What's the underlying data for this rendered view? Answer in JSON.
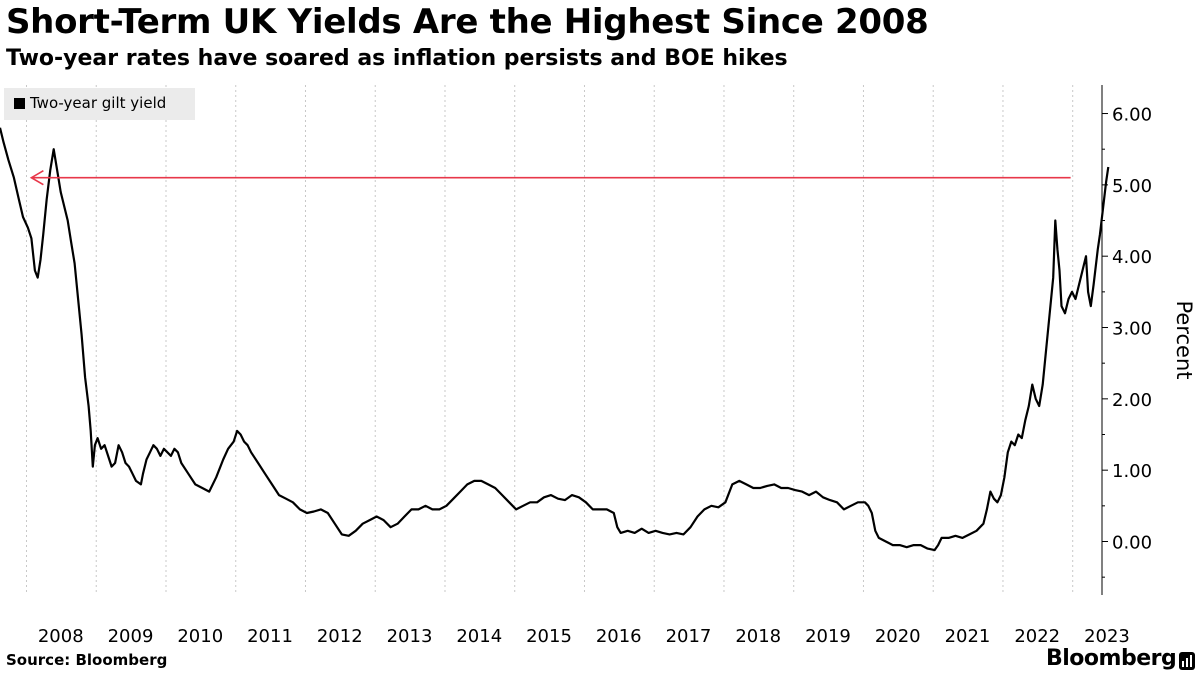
{
  "header": {
    "title": "Short-Term UK Yields Are the Highest Since 2008",
    "subtitle": "Two-year rates have soared as inflation persists and BOE hikes"
  },
  "footer": {
    "source": "Source: Bloomberg",
    "brand": "Bloomberg",
    "brand_icon": "bloomberg-terminal-icon"
  },
  "chart_data": {
    "type": "line",
    "title": "Short-Term UK Yields Are the Highest Since 2008",
    "subtitle": "Two-year rates have soared as inflation persists and BOE hikes",
    "ylabel": "Percent",
    "xlabel": "",
    "xlim": [
      2007.6,
      2023.4
    ],
    "ylim": [
      -0.75,
      6.4
    ],
    "y_axis_side": "right",
    "yticks": [
      0,
      1,
      2,
      3,
      4,
      5,
      6
    ],
    "ytick_labels": [
      "0.00",
      "1.00",
      "2.00",
      "3.00",
      "4.00",
      "5.00",
      "6.00"
    ],
    "xticks": [
      "2008",
      "2009",
      "2010",
      "2011",
      "2012",
      "2013",
      "2014",
      "2015",
      "2016",
      "2017",
      "2018",
      "2019",
      "2020",
      "2021",
      "2022",
      "2023"
    ],
    "grid": {
      "vertical": true,
      "horizontal": false
    },
    "legend": {
      "placement": "top-left",
      "entries": [
        "Two-year gilt yield"
      ]
    },
    "colors": {
      "series": "#000000",
      "annotation_arrow": "#e8374a",
      "legend_bg": "#ebebeb",
      "grid": "#c8c8c8"
    },
    "annotations": [
      {
        "type": "arrow",
        "from": [
          2022.95,
          5.1
        ],
        "to": [
          2008.05,
          5.1
        ]
      }
    ],
    "series": [
      {
        "name": "Two-year gilt yield",
        "points": [
          [
            2007.6,
            5.8
          ],
          [
            2007.65,
            5.6
          ],
          [
            2007.72,
            5.35
          ],
          [
            2007.8,
            5.1
          ],
          [
            2007.87,
            4.8
          ],
          [
            2007.93,
            4.55
          ],
          [
            2008.0,
            4.4
          ],
          [
            2008.05,
            4.25
          ],
          [
            2008.1,
            3.8
          ],
          [
            2008.14,
            3.7
          ],
          [
            2008.18,
            3.95
          ],
          [
            2008.22,
            4.3
          ],
          [
            2008.27,
            4.8
          ],
          [
            2008.32,
            5.2
          ],
          [
            2008.37,
            5.5
          ],
          [
            2008.42,
            5.2
          ],
          [
            2008.47,
            4.9
          ],
          [
            2008.52,
            4.7
          ],
          [
            2008.57,
            4.5
          ],
          [
            2008.62,
            4.2
          ],
          [
            2008.67,
            3.9
          ],
          [
            2008.72,
            3.4
          ],
          [
            2008.77,
            2.9
          ],
          [
            2008.82,
            2.3
          ],
          [
            2008.87,
            1.9
          ],
          [
            2008.9,
            1.55
          ],
          [
            2008.93,
            1.05
          ],
          [
            2008.96,
            1.35
          ],
          [
            2009.0,
            1.45
          ],
          [
            2009.05,
            1.3
          ],
          [
            2009.1,
            1.35
          ],
          [
            2009.15,
            1.2
          ],
          [
            2009.2,
            1.05
          ],
          [
            2009.25,
            1.1
          ],
          [
            2009.3,
            1.35
          ],
          [
            2009.35,
            1.25
          ],
          [
            2009.4,
            1.1
          ],
          [
            2009.45,
            1.05
          ],
          [
            2009.5,
            0.95
          ],
          [
            2009.55,
            0.85
          ],
          [
            2009.62,
            0.8
          ],
          [
            2009.65,
            0.95
          ],
          [
            2009.7,
            1.15
          ],
          [
            2009.75,
            1.25
          ],
          [
            2009.8,
            1.35
          ],
          [
            2009.85,
            1.3
          ],
          [
            2009.9,
            1.2
          ],
          [
            2009.95,
            1.3
          ],
          [
            2010.0,
            1.25
          ],
          [
            2010.05,
            1.2
          ],
          [
            2010.1,
            1.3
          ],
          [
            2010.15,
            1.25
          ],
          [
            2010.2,
            1.1
          ],
          [
            2010.3,
            0.95
          ],
          [
            2010.4,
            0.8
          ],
          [
            2010.5,
            0.75
          ],
          [
            2010.6,
            0.7
          ],
          [
            2010.7,
            0.9
          ],
          [
            2010.8,
            1.15
          ],
          [
            2010.87,
            1.3
          ],
          [
            2010.95,
            1.4
          ],
          [
            2011.0,
            1.55
          ],
          [
            2011.05,
            1.5
          ],
          [
            2011.1,
            1.4
          ],
          [
            2011.15,
            1.35
          ],
          [
            2011.2,
            1.25
          ],
          [
            2011.3,
            1.1
          ],
          [
            2011.4,
            0.95
          ],
          [
            2011.5,
            0.8
          ],
          [
            2011.6,
            0.65
          ],
          [
            2011.7,
            0.6
          ],
          [
            2011.8,
            0.55
          ],
          [
            2011.9,
            0.45
          ],
          [
            2012.0,
            0.4
          ],
          [
            2012.1,
            0.42
          ],
          [
            2012.2,
            0.45
          ],
          [
            2012.3,
            0.4
          ],
          [
            2012.4,
            0.25
          ],
          [
            2012.5,
            0.1
          ],
          [
            2012.6,
            0.08
          ],
          [
            2012.7,
            0.15
          ],
          [
            2012.8,
            0.25
          ],
          [
            2012.9,
            0.3
          ],
          [
            2013.0,
            0.35
          ],
          [
            2013.1,
            0.3
          ],
          [
            2013.2,
            0.2
          ],
          [
            2013.3,
            0.25
          ],
          [
            2013.4,
            0.35
          ],
          [
            2013.5,
            0.45
          ],
          [
            2013.6,
            0.45
          ],
          [
            2013.7,
            0.5
          ],
          [
            2013.8,
            0.45
          ],
          [
            2013.9,
            0.45
          ],
          [
            2014.0,
            0.5
          ],
          [
            2014.1,
            0.6
          ],
          [
            2014.2,
            0.7
          ],
          [
            2014.3,
            0.8
          ],
          [
            2014.4,
            0.85
          ],
          [
            2014.5,
            0.85
          ],
          [
            2014.6,
            0.8
          ],
          [
            2014.7,
            0.75
          ],
          [
            2014.8,
            0.65
          ],
          [
            2014.9,
            0.55
          ],
          [
            2015.0,
            0.45
          ],
          [
            2015.1,
            0.5
          ],
          [
            2015.2,
            0.55
          ],
          [
            2015.3,
            0.55
          ],
          [
            2015.4,
            0.62
          ],
          [
            2015.5,
            0.65
          ],
          [
            2015.6,
            0.6
          ],
          [
            2015.7,
            0.58
          ],
          [
            2015.8,
            0.65
          ],
          [
            2015.9,
            0.62
          ],
          [
            2016.0,
            0.55
          ],
          [
            2016.1,
            0.45
          ],
          [
            2016.2,
            0.45
          ],
          [
            2016.3,
            0.45
          ],
          [
            2016.4,
            0.4
          ],
          [
            2016.45,
            0.2
          ],
          [
            2016.5,
            0.12
          ],
          [
            2016.6,
            0.15
          ],
          [
            2016.7,
            0.12
          ],
          [
            2016.8,
            0.18
          ],
          [
            2016.9,
            0.12
          ],
          [
            2017.0,
            0.15
          ],
          [
            2017.1,
            0.12
          ],
          [
            2017.2,
            0.1
          ],
          [
            2017.3,
            0.12
          ],
          [
            2017.4,
            0.1
          ],
          [
            2017.5,
            0.2
          ],
          [
            2017.6,
            0.35
          ],
          [
            2017.7,
            0.45
          ],
          [
            2017.8,
            0.5
          ],
          [
            2017.9,
            0.48
          ],
          [
            2018.0,
            0.55
          ],
          [
            2018.1,
            0.8
          ],
          [
            2018.2,
            0.85
          ],
          [
            2018.3,
            0.8
          ],
          [
            2018.4,
            0.75
          ],
          [
            2018.5,
            0.75
          ],
          [
            2018.6,
            0.78
          ],
          [
            2018.7,
            0.8
          ],
          [
            2018.8,
            0.75
          ],
          [
            2018.9,
            0.75
          ],
          [
            2019.0,
            0.72
          ],
          [
            2019.1,
            0.7
          ],
          [
            2019.2,
            0.65
          ],
          [
            2019.3,
            0.7
          ],
          [
            2019.4,
            0.62
          ],
          [
            2019.5,
            0.58
          ],
          [
            2019.6,
            0.55
          ],
          [
            2019.7,
            0.45
          ],
          [
            2019.8,
            0.5
          ],
          [
            2019.9,
            0.55
          ],
          [
            2020.0,
            0.55
          ],
          [
            2020.05,
            0.5
          ],
          [
            2020.1,
            0.4
          ],
          [
            2020.15,
            0.15
          ],
          [
            2020.2,
            0.05
          ],
          [
            2020.3,
            0.0
          ],
          [
            2020.4,
            -0.05
          ],
          [
            2020.5,
            -0.05
          ],
          [
            2020.6,
            -0.08
          ],
          [
            2020.7,
            -0.05
          ],
          [
            2020.8,
            -0.05
          ],
          [
            2020.9,
            -0.1
          ],
          [
            2021.0,
            -0.12
          ],
          [
            2021.05,
            -0.05
          ],
          [
            2021.1,
            0.05
          ],
          [
            2021.2,
            0.05
          ],
          [
            2021.3,
            0.08
          ],
          [
            2021.4,
            0.05
          ],
          [
            2021.5,
            0.1
          ],
          [
            2021.6,
            0.15
          ],
          [
            2021.7,
            0.25
          ],
          [
            2021.75,
            0.45
          ],
          [
            2021.8,
            0.7
          ],
          [
            2021.85,
            0.6
          ],
          [
            2021.9,
            0.55
          ],
          [
            2021.95,
            0.65
          ],
          [
            2022.0,
            0.9
          ],
          [
            2022.05,
            1.25
          ],
          [
            2022.1,
            1.4
          ],
          [
            2022.15,
            1.35
          ],
          [
            2022.2,
            1.5
          ],
          [
            2022.25,
            1.45
          ],
          [
            2022.3,
            1.7
          ],
          [
            2022.35,
            1.9
          ],
          [
            2022.4,
            2.2
          ],
          [
            2022.45,
            2.0
          ],
          [
            2022.5,
            1.9
          ],
          [
            2022.55,
            2.2
          ],
          [
            2022.6,
            2.7
          ],
          [
            2022.65,
            3.2
          ],
          [
            2022.7,
            3.7
          ],
          [
            2022.73,
            4.5
          ],
          [
            2022.76,
            4.1
          ],
          [
            2022.79,
            3.8
          ],
          [
            2022.82,
            3.3
          ],
          [
            2022.87,
            3.2
          ],
          [
            2022.92,
            3.4
          ],
          [
            2022.97,
            3.5
          ],
          [
            2023.02,
            3.4
          ],
          [
            2023.07,
            3.6
          ],
          [
            2023.12,
            3.8
          ],
          [
            2023.17,
            4.0
          ],
          [
            2023.2,
            3.5
          ],
          [
            2023.24,
            3.3
          ],
          [
            2023.28,
            3.6
          ],
          [
            2023.31,
            3.85
          ],
          [
            2023.34,
            4.1
          ],
          [
            2023.37,
            4.3
          ],
          [
            2023.4,
            4.55
          ],
          [
            2023.43,
            4.8
          ],
          [
            2023.46,
            5.05
          ],
          [
            2023.49,
            5.25
          ]
        ]
      }
    ]
  }
}
